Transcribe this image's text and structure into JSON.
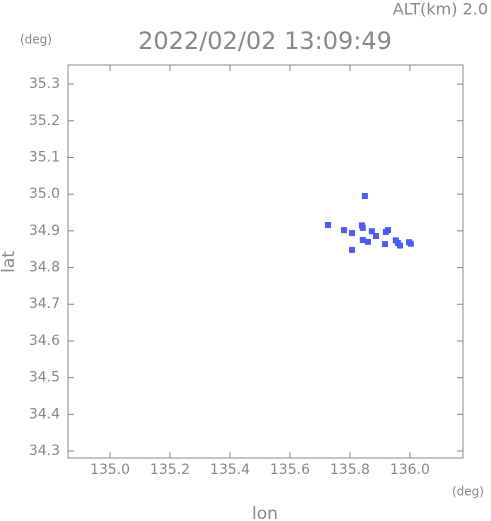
{
  "chart_data": {
    "type": "scatter",
    "title": "2022/02/02 13:09:49",
    "altitude_label": "ALT(km)  2.0",
    "y_unit": "(deg)",
    "x_unit": "(deg)",
    "x_label": "lon",
    "y_label": "lat",
    "color": "#4b5cf2",
    "x": [
      135.85,
      135.727,
      135.78,
      135.807,
      135.843,
      135.84,
      135.843,
      135.807,
      135.887,
      135.927,
      135.92,
      135.917,
      135.96,
      135.953,
      135.967,
      135.997,
      136.003,
      135.873,
      135.86
    ],
    "y": [
      34.995,
      34.916,
      34.902,
      34.894,
      34.908,
      34.915,
      34.875,
      34.848,
      34.886,
      34.902,
      34.897,
      34.864,
      34.867,
      34.874,
      34.86,
      34.869,
      34.865,
      34.899,
      34.87
    ],
    "xlim": [
      134.86,
      136.177
    ],
    "ylim": [
      34.281,
      35.352
    ],
    "xticks": [
      {
        "value": 135.0,
        "label": "135.0"
      },
      135.2,
      135.4,
      135.6,
      135.8,
      {
        "value": 136.0,
        "label": "136.0"
      }
    ],
    "yticks": [
      34.3,
      34.4,
      34.5,
      34.6,
      34.7,
      34.8,
      34.9,
      {
        "value": 35.0,
        "label": "35.0"
      },
      35.1,
      35.2,
      35.3
    ]
  }
}
